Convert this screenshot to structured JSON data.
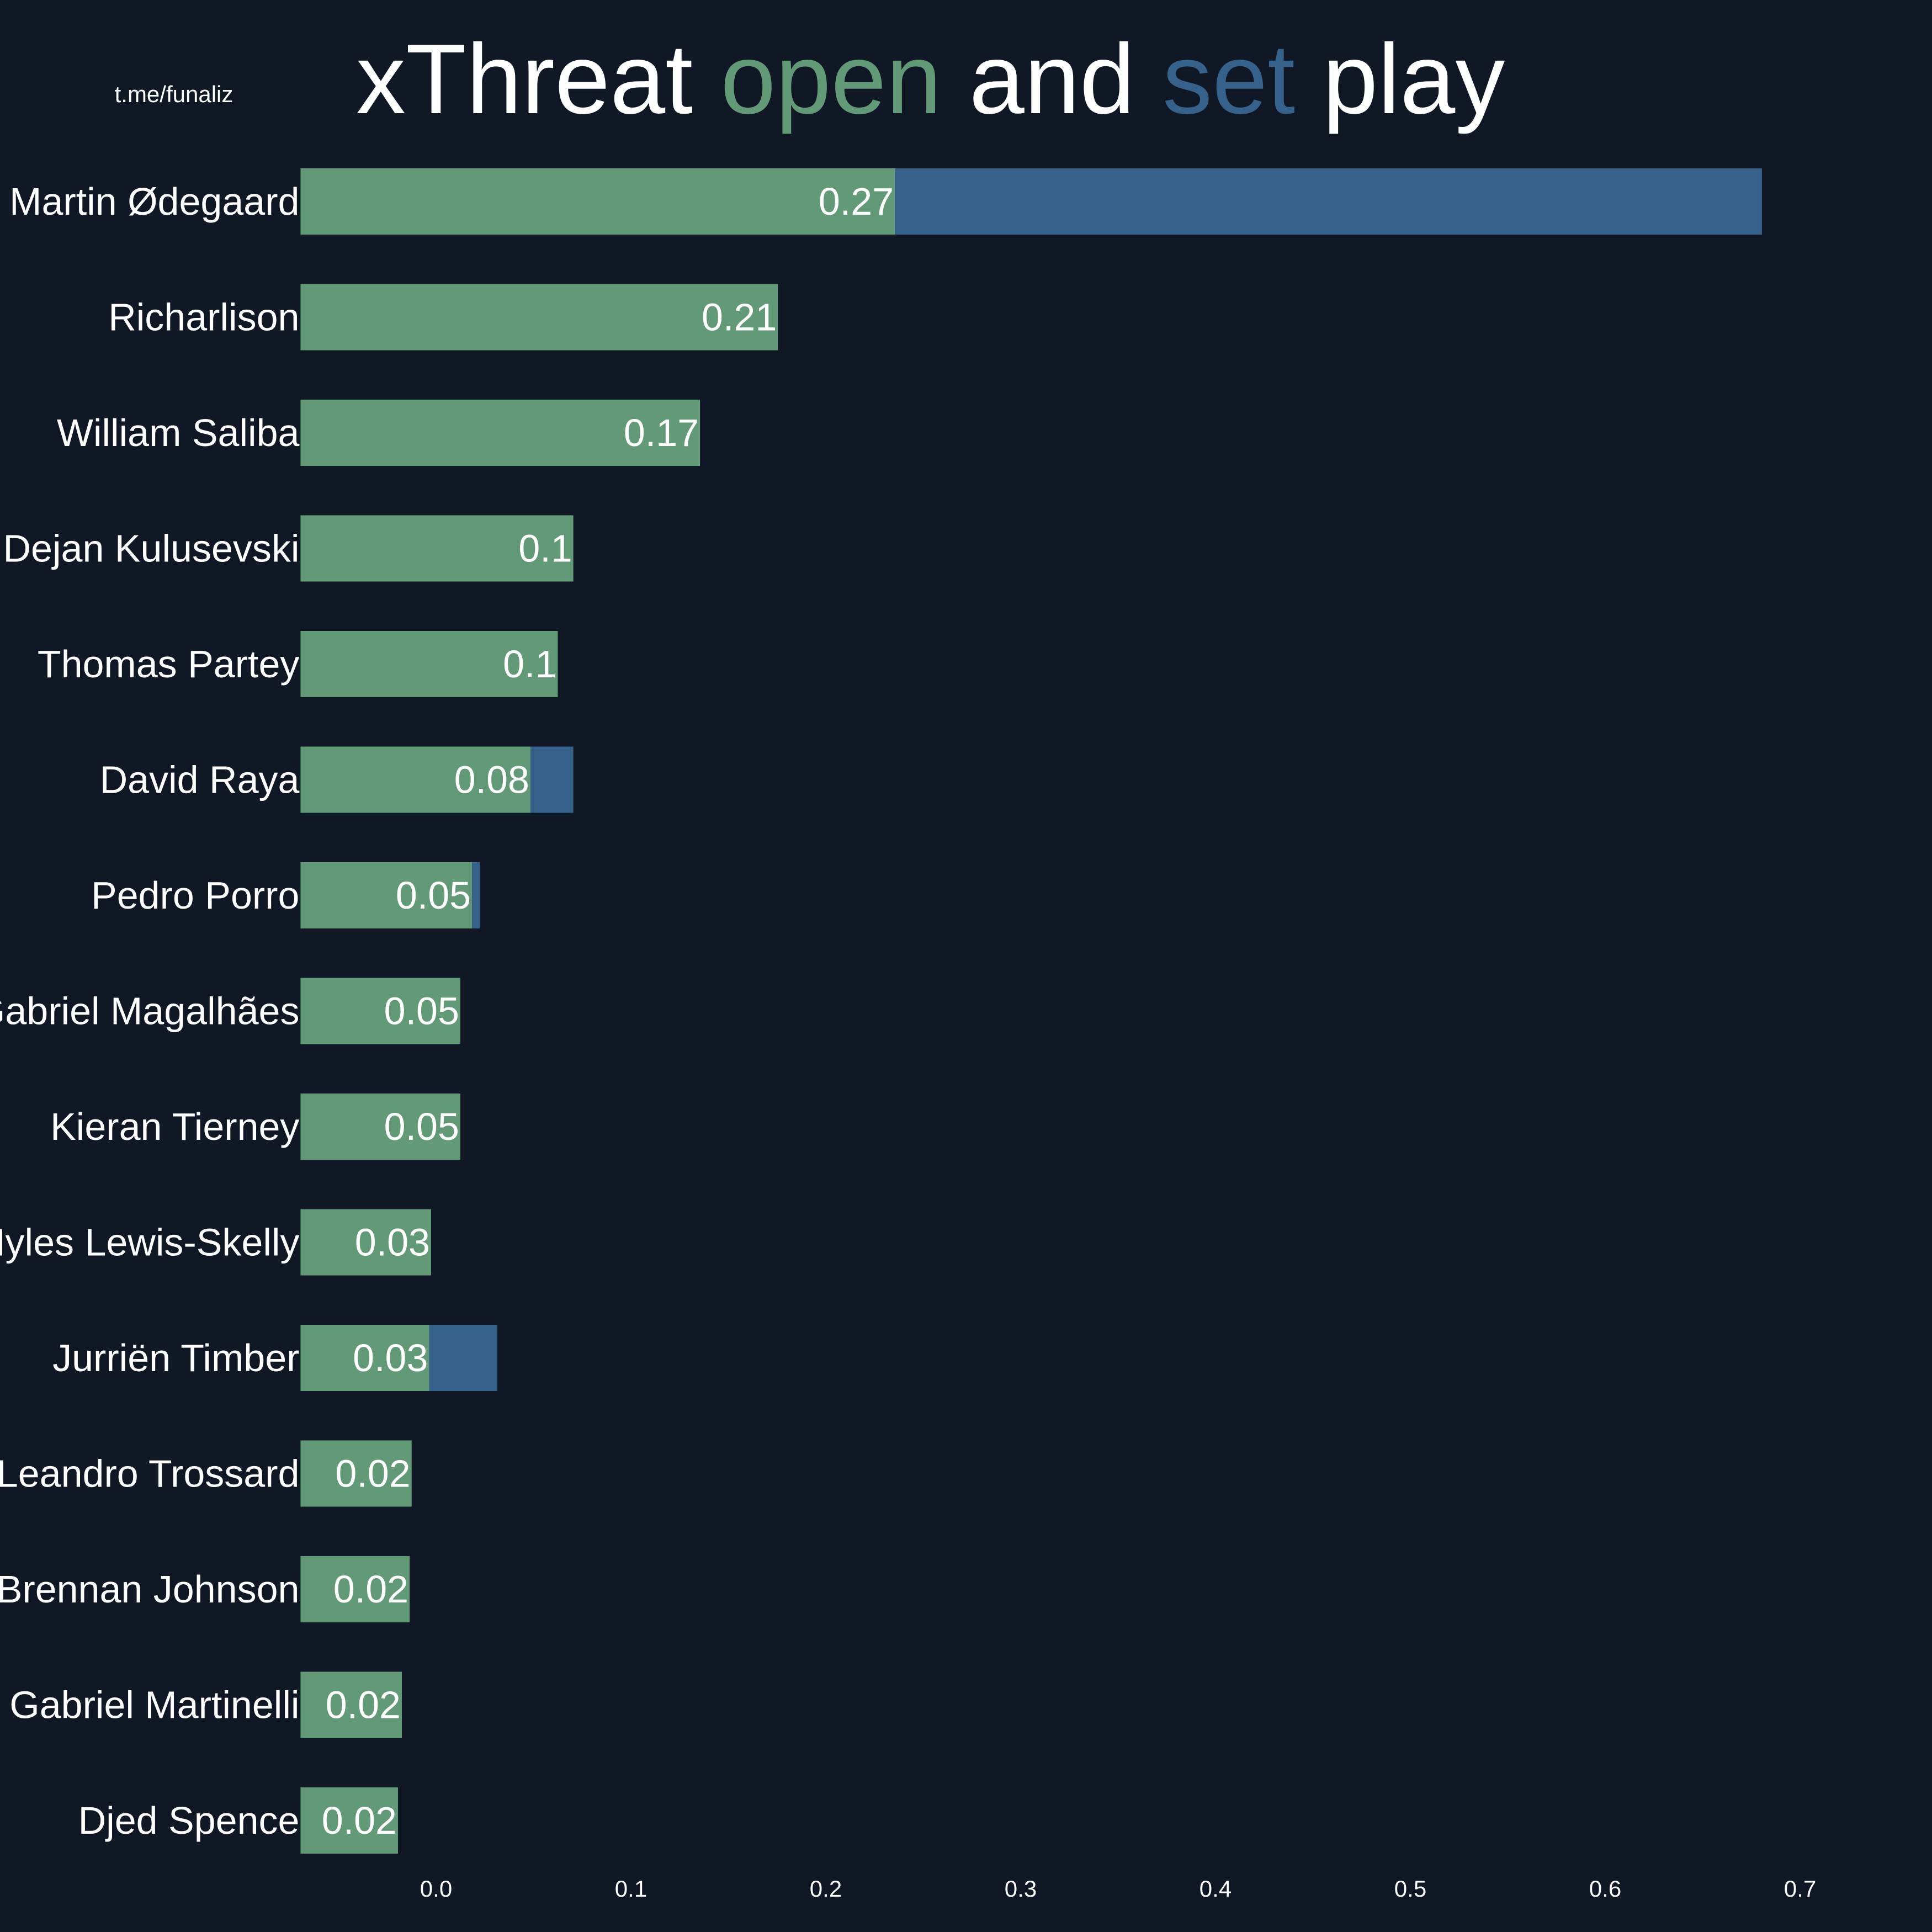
{
  "header": {
    "credit": "t.me/funaliz",
    "title_parts": [
      {
        "text": "xThreat ",
        "color": "#ffffff"
      },
      {
        "text": "open",
        "color": "#629a77"
      },
      {
        "text": " and ",
        "color": "#ffffff"
      },
      {
        "text": "set",
        "color": "#36618b"
      },
      {
        "text": " play",
        "color": "#ffffff"
      }
    ]
  },
  "colors": {
    "background": "#0f1824",
    "open_play": "#629a77",
    "set_play": "#36618b",
    "text": "#ffffff"
  },
  "chart_data": {
    "type": "bar",
    "orientation": "horizontal",
    "stacked": true,
    "title": "xThreat open and set play",
    "categories": [
      "Martin Ødegaard",
      "Richarlison",
      "William Saliba",
      "Dejan Kulusevski",
      "Thomas Partey",
      "David Raya",
      "Pedro Porro",
      "Gabriel Magalhães",
      "Kieran Tierney",
      "Myles Lewis-Skelly",
      "Jurriën Timber",
      "Leandro Trossard",
      "Brennan Johnson",
      "Gabriel Martinelli",
      "Djed Spence"
    ],
    "series": [
      {
        "color": "#629a77",
        "values": [
          0.27,
          0.21,
          0.17,
          0.105,
          0.097,
          0.083,
          0.053,
          0.047,
          0.047,
          0.032,
          0.031,
          0.022,
          0.021,
          0.017,
          0.015
        ]
      },
      {
        "color": "#36618b",
        "values": [
          0.445,
          0,
          0,
          0,
          0,
          0.022,
          0.004,
          0,
          0,
          0,
          0.035,
          0,
          0,
          0,
          0
        ]
      }
    ],
    "data_labels": [
      "0.27",
      "0.21",
      "0.17",
      "0.1",
      "0.1",
      "0.08",
      "0.05",
      "0.05",
      "0.05",
      "0.03",
      "0.03",
      "0.02",
      "0.02",
      "0.02",
      "0.02"
    ],
    "xticks": [
      0.0,
      0.1,
      0.2,
      0.3,
      0.4,
      0.5,
      0.6,
      0.7
    ],
    "xtick_labels": [
      "0.0",
      "0.1",
      "0.2",
      "0.3",
      "0.4",
      "0.5",
      "0.6",
      "0.7"
    ],
    "xlim": [
      -0.035,
      0.75
    ],
    "grid": false,
    "legend": "none (colors encoded in title)"
  }
}
